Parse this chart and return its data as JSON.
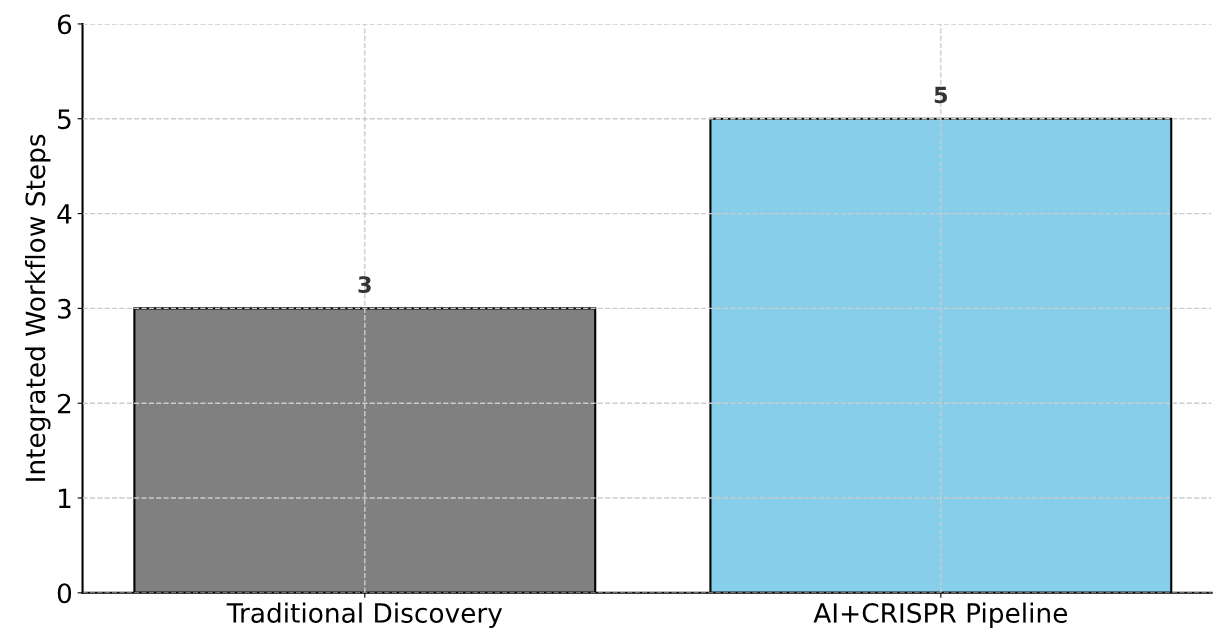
{
  "chart_data": {
    "type": "bar",
    "ylabel": "Integrated Workflow Steps",
    "categories": [
      "Traditional Discovery",
      "AI+CRISPR Pipeline"
    ],
    "values": [
      3,
      5
    ],
    "colors": [
      "#808080",
      "#87ceeb"
    ],
    "ylim": [
      0,
      6
    ],
    "yticks": [
      0,
      1,
      2,
      3,
      4,
      5,
      6
    ],
    "grid": true,
    "data_labels": true
  }
}
